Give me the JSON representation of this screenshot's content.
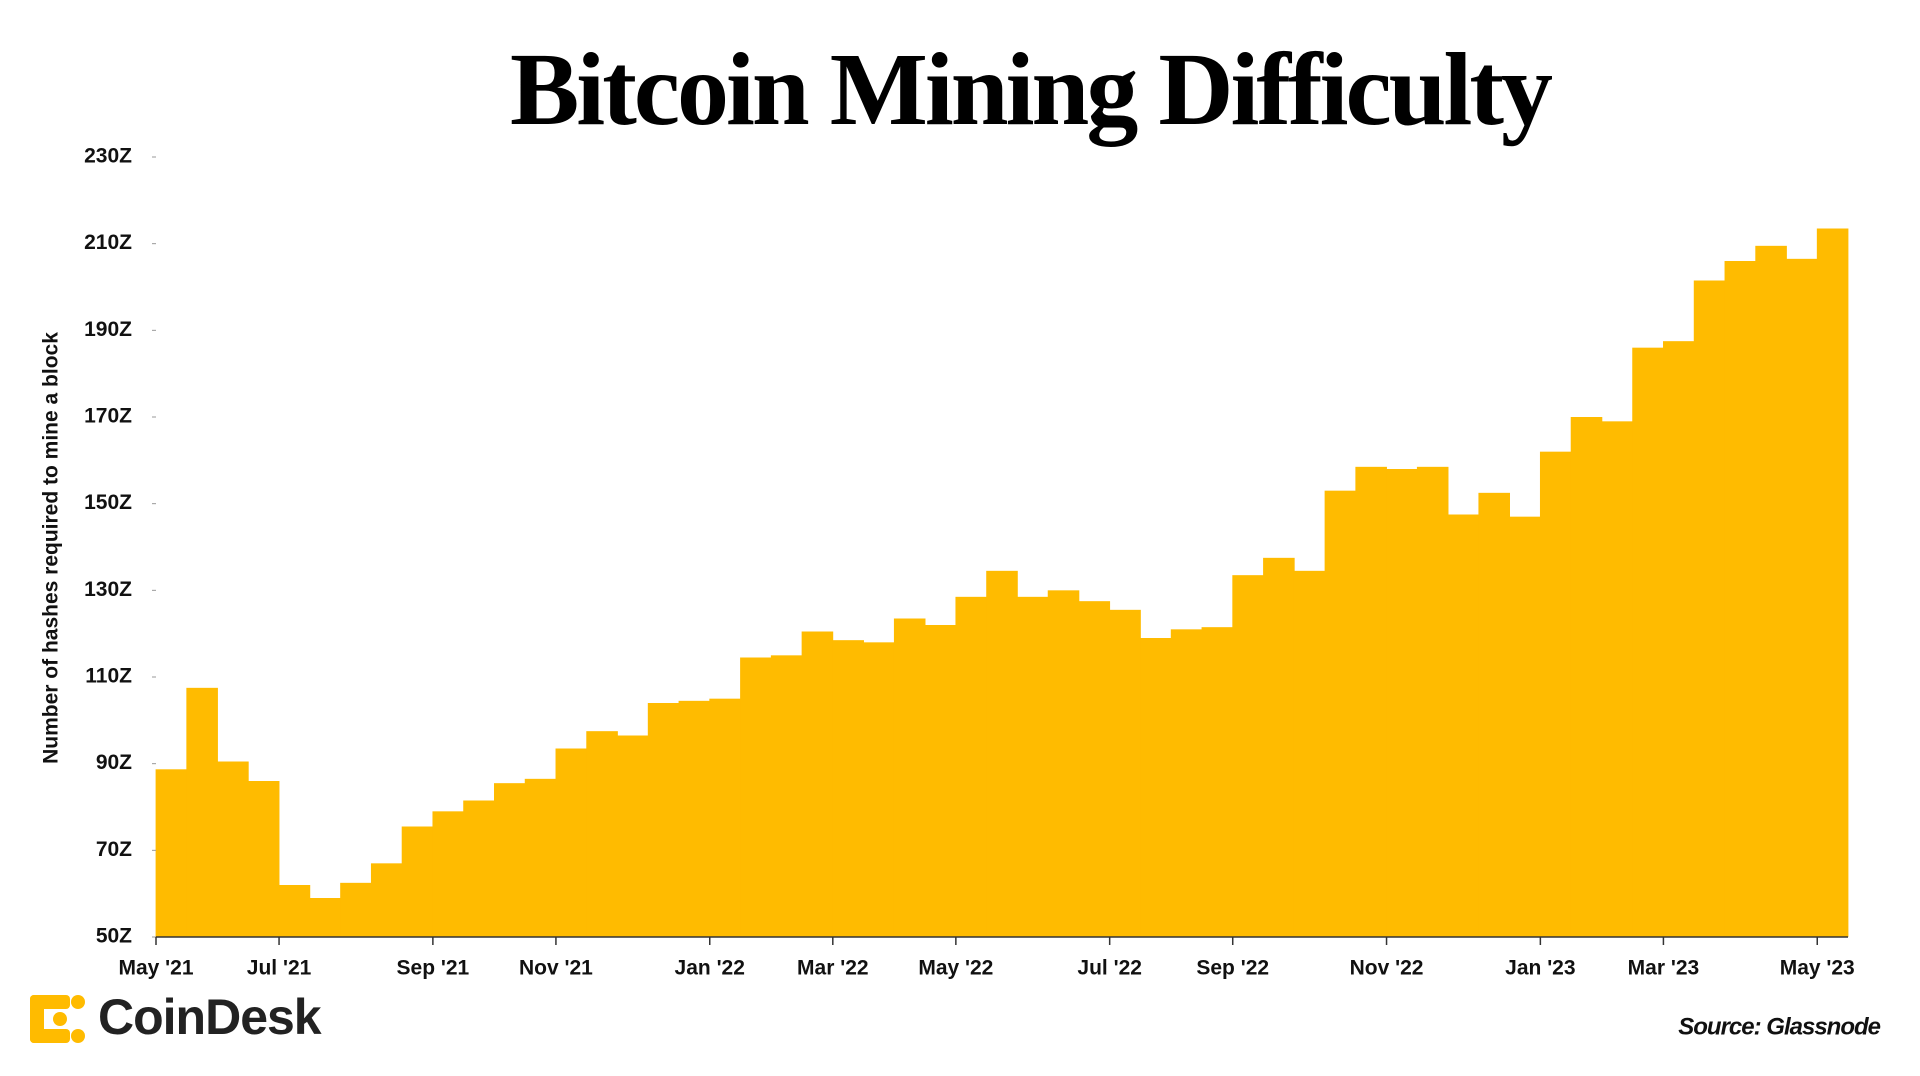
{
  "chart_data": {
    "type": "step-area",
    "title": "Bitcoin Mining Difficulty",
    "y_label": "Number of hashes required to mine a block",
    "categories": [
      "May '21",
      null,
      null,
      null,
      "Jul '21",
      null,
      null,
      null,
      null,
      "Sep '21",
      null,
      null,
      null,
      "Nov '21",
      null,
      null,
      null,
      null,
      "Jan '22",
      null,
      null,
      null,
      "Mar '22",
      null,
      null,
      null,
      "May '22",
      null,
      null,
      null,
      null,
      "Jul '22",
      null,
      null,
      null,
      "Sep '22",
      null,
      null,
      null,
      null,
      "Nov '22",
      null,
      null,
      null,
      null,
      "Jan '23",
      null,
      null,
      null,
      "Mar '23",
      null,
      null,
      null,
      null,
      "May '23"
    ],
    "values": [
      88.7,
      107.5,
      90.5,
      86,
      62,
      59,
      62.5,
      67,
      75.5,
      79,
      81.5,
      85.5,
      86.5,
      93.5,
      97.5,
      96.5,
      104,
      104.5,
      105,
      114.5,
      115,
      120.5,
      118.5,
      118,
      123.5,
      122,
      128.5,
      134.5,
      128.5,
      130,
      127.5,
      125.5,
      119,
      121,
      121.5,
      133.5,
      137.5,
      134.5,
      153,
      158.5,
      158,
      158.5,
      147.5,
      152.5,
      147,
      162,
      170,
      169,
      186,
      187.5,
      201.5,
      206,
      209.5,
      206.5,
      213.5
    ],
    "color": "#FFBB00",
    "ylim": [
      50,
      230
    ],
    "yticks": [
      {
        "value": 50,
        "label": "50Z"
      },
      {
        "value": 70,
        "label": "70Z"
      },
      {
        "value": 90,
        "label": "90Z"
      },
      {
        "value": 110,
        "label": "110Z"
      },
      {
        "value": 130,
        "label": "130Z"
      },
      {
        "value": 150,
        "label": "150Z"
      },
      {
        "value": 170,
        "label": "170Z"
      },
      {
        "value": 190,
        "label": "190Z"
      },
      {
        "value": 210,
        "label": "210Z"
      },
      {
        "value": 230,
        "label": "230Z"
      }
    ],
    "grid": false
  },
  "brand": "CoinDesk",
  "source": "Source: Glassnode"
}
